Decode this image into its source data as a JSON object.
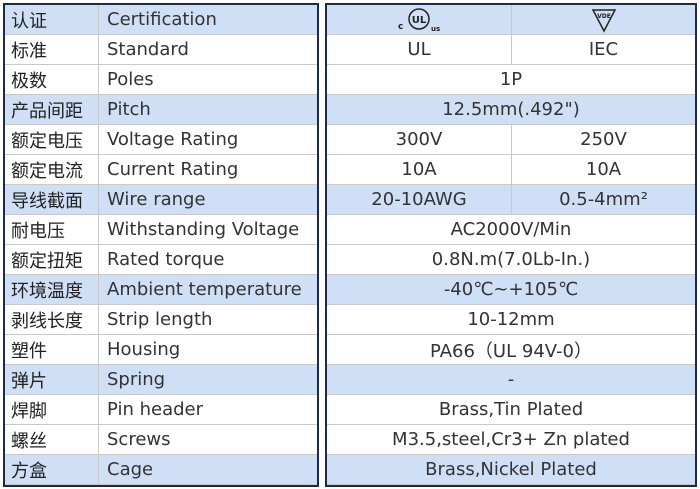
{
  "certification_marks": [
    {
      "prefix": "c",
      "mark": "UL",
      "suffix": "us"
    },
    {
      "mark": "VDE"
    }
  ],
  "rows": [
    {
      "zh": "认证",
      "en": "Certification",
      "values": []
    },
    {
      "zh": "标准",
      "en": "Standard",
      "values": [
        "UL",
        "IEC"
      ]
    },
    {
      "zh": "极数",
      "en": "Poles",
      "values": [
        "1P"
      ]
    },
    {
      "zh": "产品间距",
      "en": "Pitch",
      "values": [
        "12.5mm(.492\")"
      ]
    },
    {
      "zh": "额定电压",
      "en": "Voltage Rating",
      "values": [
        "300V",
        "250V"
      ]
    },
    {
      "zh": "额定电流",
      "en": "Current Rating",
      "values": [
        "10A",
        "10A"
      ]
    },
    {
      "zh": "导线截面",
      "en": "Wire range",
      "values": [
        "20-10AWG",
        "0.5-4mm²"
      ]
    },
    {
      "zh": "耐电压",
      "en": "Withstanding Voltage",
      "values": [
        "AC2000V/Min"
      ]
    },
    {
      "zh": "额定扭矩",
      "en": "Rated torque",
      "values": [
        "0.8N.m(7.0Lb-In.)"
      ]
    },
    {
      "zh": "环境温度",
      "en": "Ambient temperature",
      "values": [
        "-40℃~+105℃"
      ]
    },
    {
      "zh": "剥线长度",
      "en": "Strip length",
      "values": [
        "10-12mm"
      ]
    },
    {
      "zh": "塑件",
      "en": "Housing",
      "values": [
        "PA66（UL 94V-0）"
      ]
    },
    {
      "zh": "弹片",
      "en": "Spring",
      "values": [
        "-"
      ]
    },
    {
      "zh": "焊脚",
      "en": "Pin header",
      "values": [
        "Brass,Tin Plated"
      ]
    },
    {
      "zh": "螺丝",
      "en": "Screws",
      "values": [
        "M3.5,steel,Cr3+ Zn plated"
      ]
    },
    {
      "zh": "方盒",
      "en": "Cage",
      "values": [
        "Brass,Nickel Plated"
      ]
    }
  ]
}
